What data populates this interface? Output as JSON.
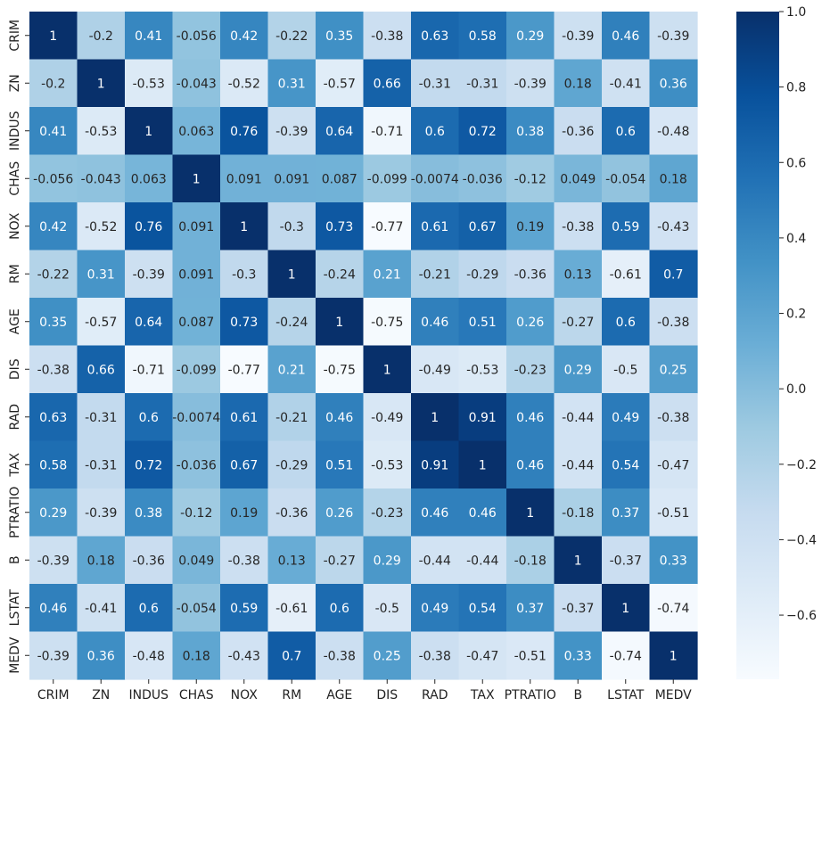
{
  "chart_data": {
    "type": "heatmap",
    "title": "",
    "xlabel": "",
    "ylabel": "",
    "annotated": true,
    "colormap": "Blues",
    "categories": [
      "CRIM",
      "ZN",
      "INDUS",
      "CHAS",
      "NOX",
      "RM",
      "AGE",
      "DIS",
      "RAD",
      "TAX",
      "PTRATIO",
      "B",
      "LSTAT",
      "MEDV"
    ],
    "matrix": [
      [
        1,
        -0.2,
        0.41,
        -0.056,
        0.42,
        -0.22,
        0.35,
        -0.38,
        0.63,
        0.58,
        0.29,
        -0.39,
        0.46,
        -0.39
      ],
      [
        -0.2,
        1,
        -0.53,
        -0.043,
        -0.52,
        0.31,
        -0.57,
        0.66,
        -0.31,
        -0.31,
        -0.39,
        0.18,
        -0.41,
        0.36
      ],
      [
        0.41,
        -0.53,
        1,
        0.063,
        0.76,
        -0.39,
        0.64,
        -0.71,
        0.6,
        0.72,
        0.38,
        -0.36,
        0.6,
        -0.48
      ],
      [
        -0.056,
        -0.043,
        0.063,
        1,
        0.091,
        0.091,
        0.087,
        -0.099,
        -0.0074,
        -0.036,
        -0.12,
        0.049,
        -0.054,
        0.18
      ],
      [
        0.42,
        -0.52,
        0.76,
        0.091,
        1,
        -0.3,
        0.73,
        -0.77,
        0.61,
        0.67,
        0.19,
        -0.38,
        0.59,
        -0.43
      ],
      [
        -0.22,
        0.31,
        -0.39,
        0.091,
        -0.3,
        1,
        -0.24,
        0.21,
        -0.21,
        -0.29,
        -0.36,
        0.13,
        -0.61,
        0.7
      ],
      [
        0.35,
        -0.57,
        0.64,
        0.087,
        0.73,
        -0.24,
        1,
        -0.75,
        0.46,
        0.51,
        0.26,
        -0.27,
        0.6,
        -0.38
      ],
      [
        -0.38,
        0.66,
        -0.71,
        -0.099,
        -0.77,
        0.21,
        -0.75,
        1,
        -0.49,
        -0.53,
        -0.23,
        0.29,
        -0.5,
        0.25
      ],
      [
        0.63,
        -0.31,
        0.6,
        -0.0074,
        0.61,
        -0.21,
        0.46,
        -0.49,
        1,
        0.91,
        0.46,
        -0.44,
        0.49,
        -0.38
      ],
      [
        0.58,
        -0.31,
        0.72,
        -0.036,
        0.67,
        -0.29,
        0.51,
        -0.53,
        0.91,
        1,
        0.46,
        -0.44,
        0.54,
        -0.47
      ],
      [
        0.29,
        -0.39,
        0.38,
        -0.12,
        0.19,
        -0.36,
        0.26,
        -0.23,
        0.46,
        0.46,
        1,
        -0.18,
        0.37,
        -0.51
      ],
      [
        -0.39,
        0.18,
        -0.36,
        0.049,
        -0.38,
        0.13,
        -0.27,
        0.29,
        -0.44,
        -0.44,
        -0.18,
        1,
        -0.37,
        0.33
      ],
      [
        0.46,
        -0.41,
        0.6,
        -0.054,
        0.59,
        -0.61,
        0.6,
        -0.5,
        0.49,
        0.54,
        0.37,
        -0.37,
        1,
        -0.74
      ],
      [
        -0.39,
        0.36,
        -0.48,
        0.18,
        -0.43,
        0.7,
        -0.38,
        0.25,
        -0.38,
        -0.47,
        -0.51,
        0.33,
        -0.74,
        1
      ]
    ],
    "colorbar": {
      "range": [
        -0.77,
        1.0
      ],
      "ticks": [
        1.0,
        0.8,
        0.6,
        0.4,
        0.2,
        0.0,
        -0.2,
        -0.4,
        -0.6
      ],
      "tick_labels": [
        "1.0",
        "0.8",
        "0.6",
        "0.4",
        "0.2",
        "0.0",
        "−0.2",
        "−0.4",
        "−0.6"
      ]
    }
  }
}
